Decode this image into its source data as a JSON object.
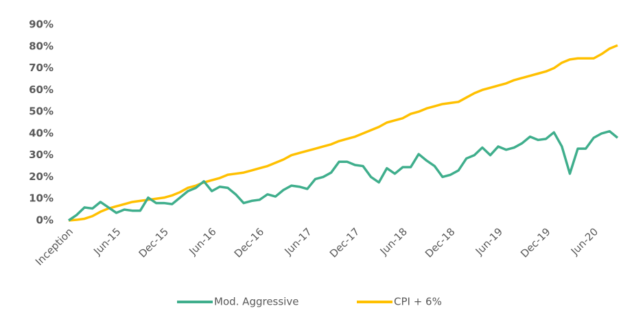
{
  "chart_data": {
    "type": "line",
    "categories": [
      "Inception",
      null,
      null,
      null,
      null,
      null,
      "Jun-15",
      null,
      null,
      null,
      null,
      null,
      "Dec-15",
      null,
      null,
      null,
      null,
      null,
      "Jun-16",
      null,
      null,
      null,
      null,
      null,
      "Dec-16",
      null,
      null,
      null,
      null,
      null,
      "Jun-17",
      null,
      null,
      null,
      null,
      null,
      "Dec-17",
      null,
      null,
      null,
      null,
      null,
      "Jun-18",
      null,
      null,
      null,
      null,
      null,
      "Dec-18",
      null,
      null,
      null,
      null,
      null,
      "Jun-19",
      null,
      null,
      null,
      null,
      null,
      "Dec-19",
      null,
      null,
      null,
      null,
      null,
      "Jun-20",
      null,
      null,
      null
    ],
    "series": [
      {
        "name": "Mod. Aggressive",
        "color": "#3fae8c",
        "values": [
          0,
          2.5,
          6,
          5.5,
          8.5,
          6,
          3.5,
          5,
          4.5,
          4.5,
          10.5,
          8,
          8,
          7.5,
          10.5,
          13.5,
          15,
          18,
          13.5,
          15.5,
          15,
          12,
          8,
          9,
          9.5,
          12,
          11,
          14,
          16,
          15.5,
          14.5,
          19,
          20,
          22,
          27,
          27,
          25.5,
          25,
          20,
          17.5,
          24,
          21.5,
          24.5,
          24.5,
          30.5,
          27.5,
          25,
          20,
          21,
          23,
          28.5,
          30,
          33.5,
          30,
          34,
          32.5,
          33.5,
          35.5,
          38.5,
          37,
          37.5,
          40.5,
          34,
          21.5,
          33,
          33,
          38,
          40,
          41,
          38
        ]
      },
      {
        "name": "CPI + 6%",
        "color": "#ffc000",
        "values": [
          0,
          0.3,
          0.8,
          2,
          4,
          5.5,
          6.5,
          7.5,
          8.5,
          9,
          9.5,
          10,
          10.5,
          11.5,
          13,
          15,
          16,
          17.5,
          18.5,
          19.5,
          21,
          21.5,
          22,
          23,
          24,
          25,
          26.5,
          28,
          30,
          31,
          32,
          33,
          34,
          35,
          36.5,
          37.5,
          38.5,
          40,
          41.5,
          43,
          45,
          46,
          47,
          49,
          50,
          51.5,
          52.5,
          53.5,
          54,
          54.5,
          56.5,
          58.5,
          60,
          61,
          62,
          63,
          64.5,
          65.5,
          66.5,
          67.5,
          68.5,
          70,
          72.5,
          74,
          74.5,
          74.5,
          74.5,
          76.5,
          79,
          80.5
        ]
      }
    ],
    "ylim": [
      0,
      90
    ],
    "yticks": [
      {
        "value": 0,
        "label": "0%"
      },
      {
        "value": 10,
        "label": "10%"
      },
      {
        "value": 20,
        "label": "20%"
      },
      {
        "value": 30,
        "label": "30%"
      },
      {
        "value": 40,
        "label": "40%"
      },
      {
        "value": 50,
        "label": "50%"
      },
      {
        "value": 60,
        "label": "60%"
      },
      {
        "value": 70,
        "label": "70%"
      },
      {
        "value": 80,
        "label": "80%"
      },
      {
        "value": 90,
        "label": "90%"
      }
    ],
    "grid": false,
    "legend": "bottom"
  }
}
